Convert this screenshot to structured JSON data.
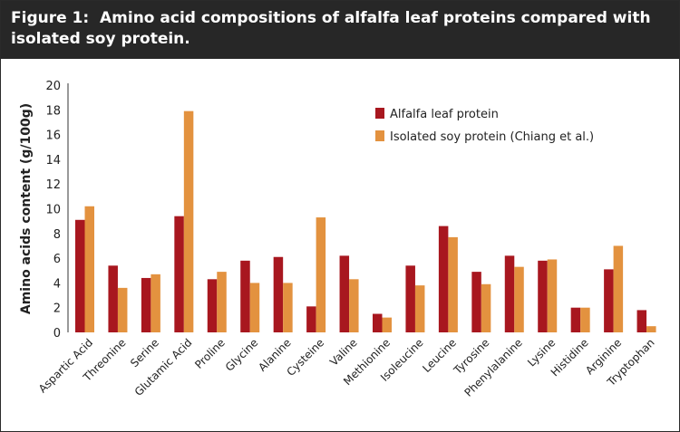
{
  "figure": {
    "title": "Figure 1:  Amino acid compositions of alfalfa leaf proteins compared with isolated soy protein."
  },
  "chart_data": {
    "type": "bar",
    "title": "Figure 1:  Amino acid compositions of alfalfa leaf proteins compared with isolated soy protein.",
    "xlabel": "",
    "ylabel": "Amino acids content (g/100g)",
    "ylim": [
      0,
      20
    ],
    "yticks": [
      0,
      2,
      4,
      6,
      8,
      10,
      12,
      14,
      16,
      18,
      20
    ],
    "grid": false,
    "legend_position": "top-right",
    "categories": [
      "Aspartic Acid",
      "Threonine",
      "Serine",
      "Glutamic Acid",
      "Proline",
      "Glycine",
      "Alanine",
      "Cysteine",
      "Valine",
      "Methionine",
      "Isoleucine",
      "Leucine",
      "Tyrosine",
      "Phenylalanine",
      "Lysine",
      "Histidine",
      "Arginine",
      "Tryptophan"
    ],
    "series": [
      {
        "name": "Alfalfa leaf protein",
        "color": "#a8171f",
        "values": [
          9.1,
          5.4,
          4.4,
          9.4,
          4.3,
          5.8,
          6.1,
          2.1,
          6.2,
          1.5,
          5.4,
          8.6,
          4.9,
          6.2,
          5.8,
          2.0,
          5.1,
          1.8
        ]
      },
      {
        "name": "Isolated soy protein (Chiang et al.)",
        "color": "#e3923f",
        "values": [
          10.2,
          3.6,
          4.7,
          17.9,
          4.9,
          4.0,
          4.0,
          9.3,
          4.3,
          1.2,
          3.8,
          7.7,
          3.9,
          5.3,
          5.9,
          2.0,
          7.0,
          0.5
        ]
      }
    ]
  }
}
